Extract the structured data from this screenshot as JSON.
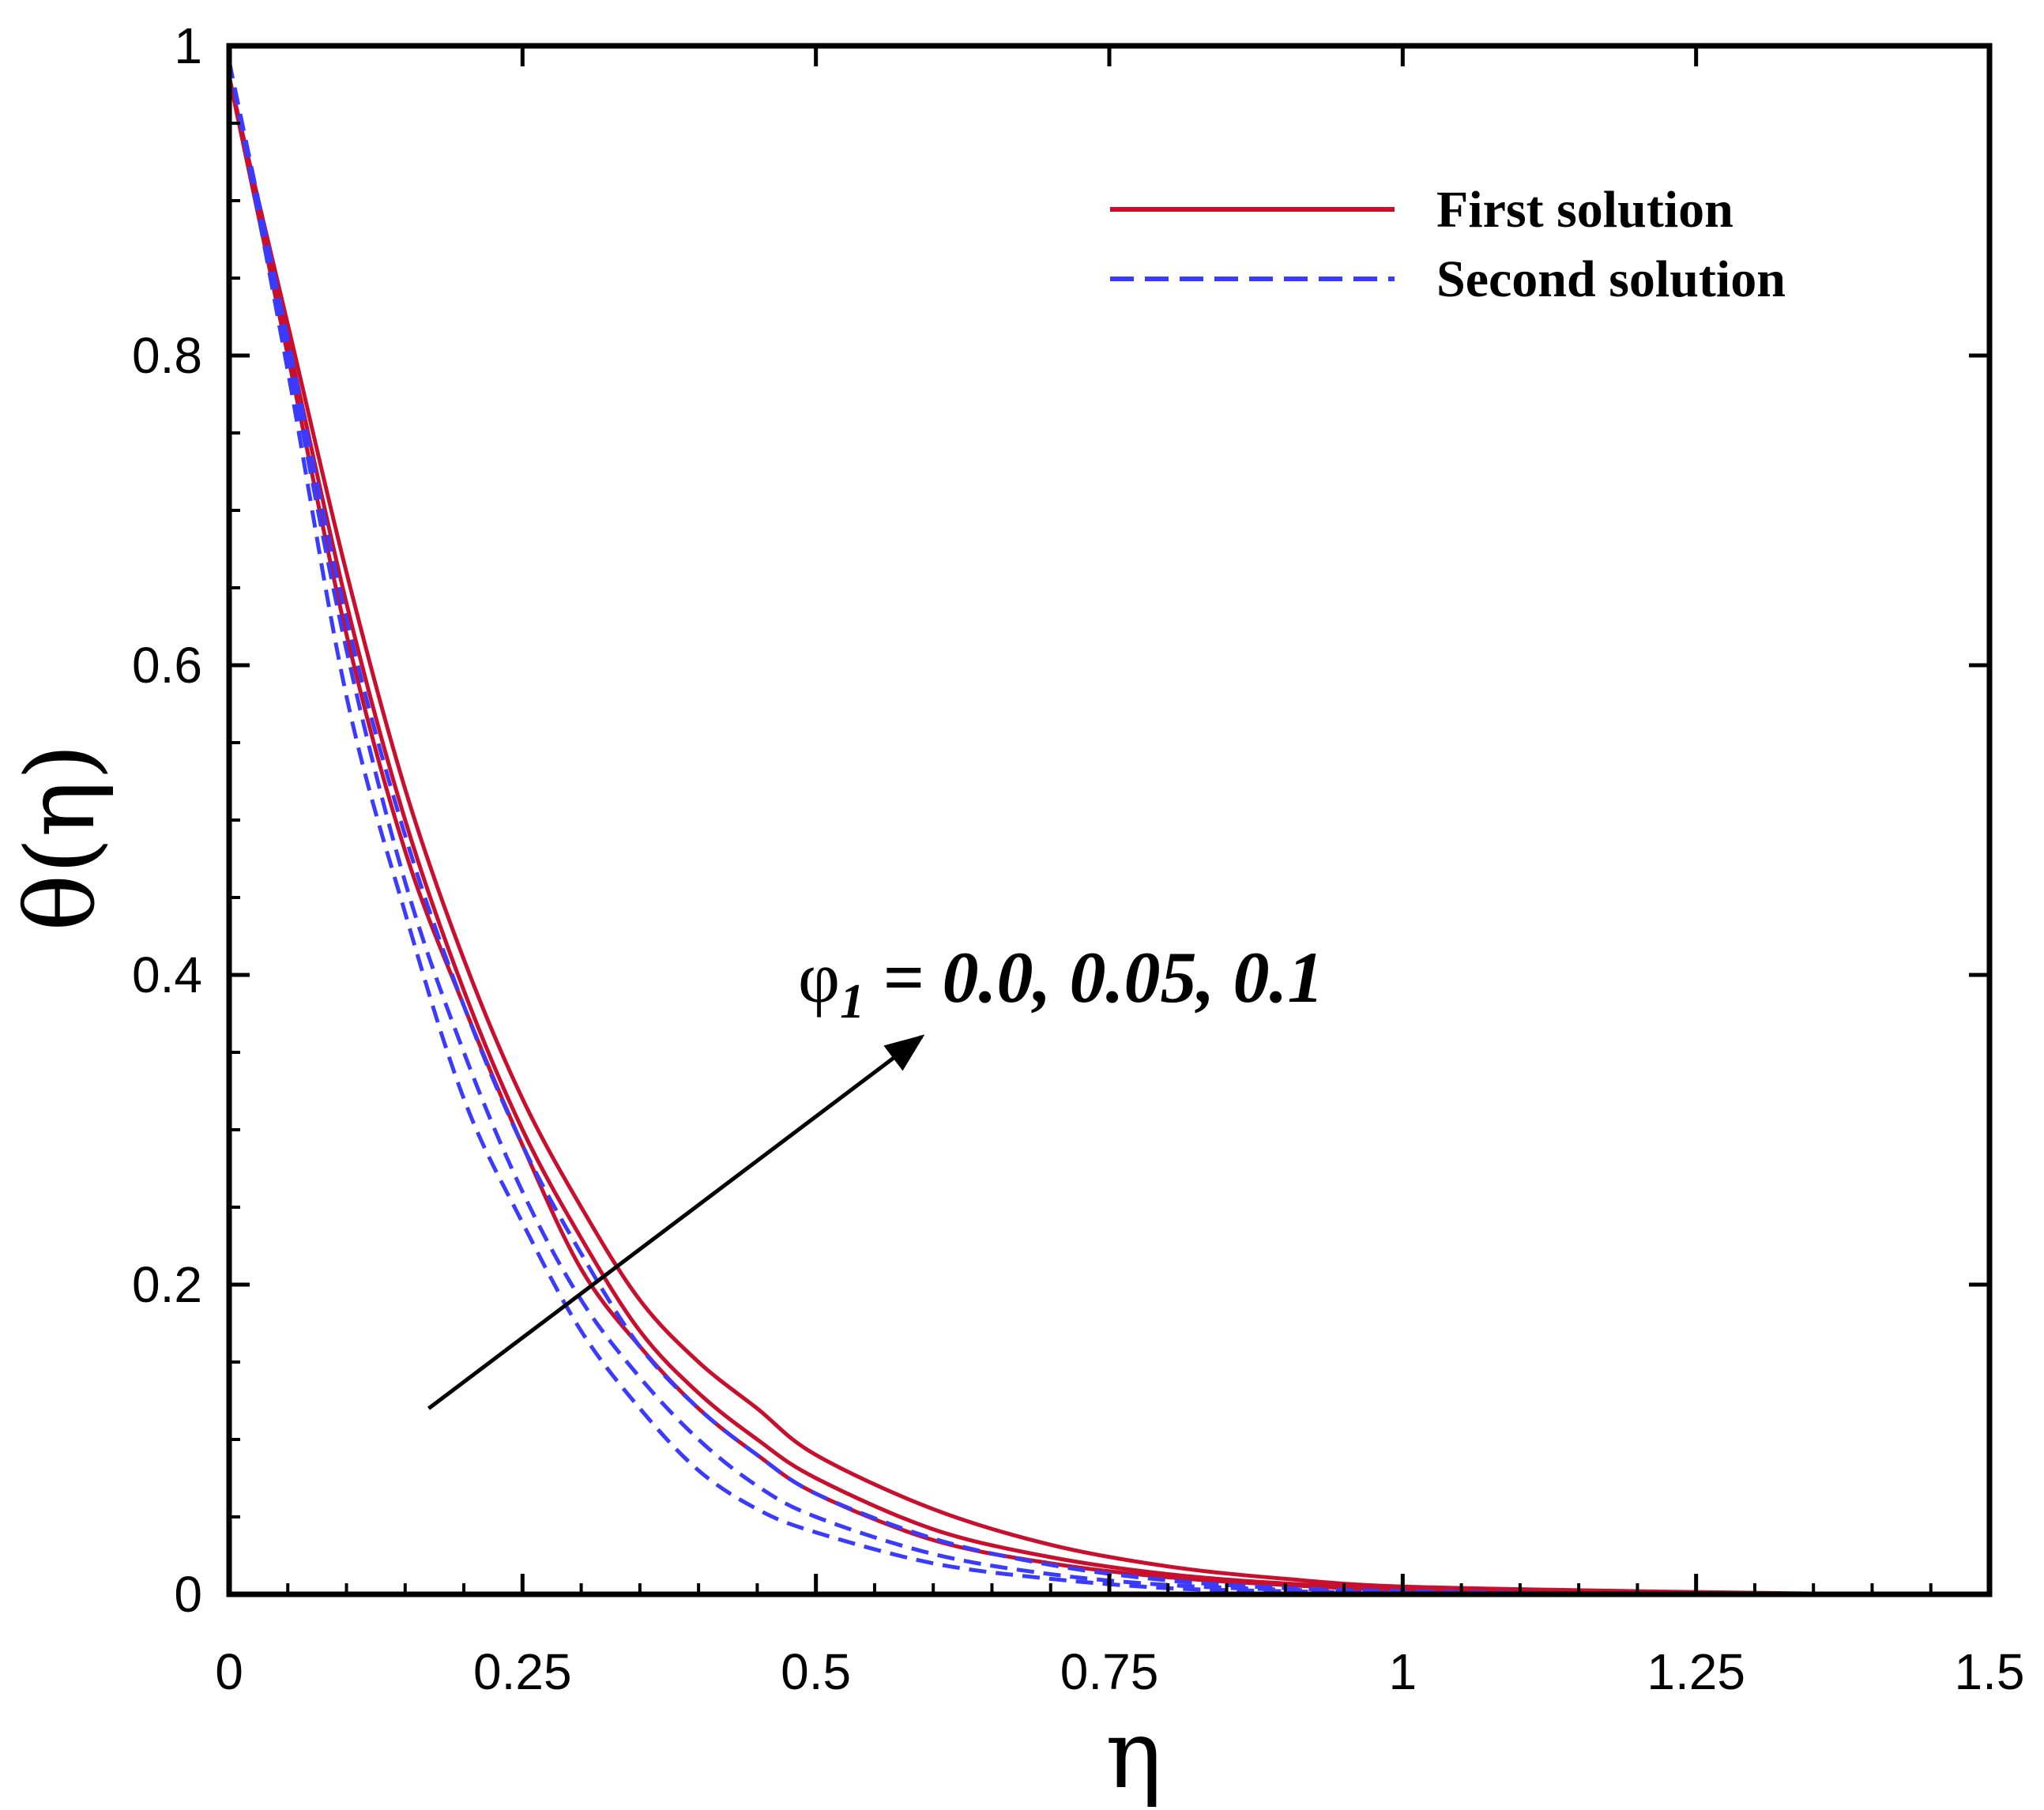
{
  "chart_data": {
    "type": "line",
    "title": "",
    "xlabel": "η",
    "ylabel": "θ(η)",
    "xlim": [
      0,
      1.5
    ],
    "ylim": [
      0,
      1
    ],
    "x_ticks": [
      {
        "value": 0,
        "label": "0"
      },
      {
        "value": 0.25,
        "label": "0.25"
      },
      {
        "value": 0.5,
        "label": "0.5"
      },
      {
        "value": 0.75,
        "label": "0.75"
      },
      {
        "value": 1,
        "label": "1"
      },
      {
        "value": 1.25,
        "label": "1.25"
      },
      {
        "value": 1.5,
        "label": "1.5"
      }
    ],
    "y_ticks": [
      {
        "value": 0,
        "label": "0"
      },
      {
        "value": 0.2,
        "label": "0.2"
      },
      {
        "value": 0.4,
        "label": "0.4"
      },
      {
        "value": 0.6,
        "label": "0.6"
      },
      {
        "value": 0.8,
        "label": "0.8"
      },
      {
        "value": 1,
        "label": "1"
      }
    ],
    "x_minor_step": 0.05,
    "y_minor_step": 0.05,
    "legend": {
      "position": "top-right",
      "entries": [
        {
          "label": "First solution",
          "color": "#c8102e",
          "style": "solid"
        },
        {
          "label": "Second solution",
          "color": "#3b3bff",
          "style": "dashed"
        }
      ]
    },
    "annotation": {
      "symbol": "φ",
      "subscript": "1",
      "text": " = 0.0, 0.05, 0.1",
      "arrow_from": [
        0.17,
        0.12
      ],
      "arrow_to": [
        0.59,
        0.36
      ]
    },
    "series": [
      {
        "name": "First solution, φ1 = 0.0",
        "group": "First solution",
        "color": "#c8102e",
        "dash": "solid",
        "x": [
          0,
          0.05,
          0.1,
          0.15,
          0.2,
          0.25,
          0.3,
          0.35,
          0.4,
          0.45,
          0.5,
          0.6,
          0.7,
          0.8,
          0.9,
          1.0,
          1.2,
          1.4
        ],
        "y": [
          0.98,
          0.8,
          0.62,
          0.48,
          0.38,
          0.29,
          0.21,
          0.16,
          0.12,
          0.09,
          0.065,
          0.035,
          0.02,
          0.011,
          0.006,
          0.003,
          0.001,
          0.0
        ]
      },
      {
        "name": "First solution, φ1 = 0.05",
        "group": "First solution",
        "color": "#c8102e",
        "dash": "solid",
        "x": [
          0,
          0.05,
          0.1,
          0.15,
          0.2,
          0.25,
          0.3,
          0.35,
          0.4,
          0.45,
          0.5,
          0.6,
          0.7,
          0.8,
          0.9,
          1.0,
          1.2,
          1.4
        ],
        "y": [
          0.98,
          0.81,
          0.64,
          0.5,
          0.39,
          0.3,
          0.23,
          0.17,
          0.13,
          0.1,
          0.075,
          0.042,
          0.024,
          0.013,
          0.007,
          0.004,
          0.001,
          0.0
        ]
      },
      {
        "name": "First solution, φ1 = 0.1",
        "group": "First solution",
        "color": "#c8102e",
        "dash": "solid",
        "x": [
          0,
          0.05,
          0.1,
          0.15,
          0.2,
          0.25,
          0.3,
          0.35,
          0.4,
          0.45,
          0.5,
          0.6,
          0.7,
          0.8,
          0.9,
          1.0,
          1.2,
          1.4
        ],
        "y": [
          0.98,
          0.82,
          0.66,
          0.52,
          0.41,
          0.32,
          0.25,
          0.19,
          0.15,
          0.12,
          0.09,
          0.055,
          0.032,
          0.018,
          0.01,
          0.005,
          0.002,
          0.0
        ]
      },
      {
        "name": "Second solution, φ1 = 0.0",
        "group": "Second solution",
        "color": "#3b3bff",
        "dash": "dashed",
        "x": [
          0,
          0.05,
          0.1,
          0.15,
          0.2,
          0.25,
          0.3,
          0.35,
          0.4,
          0.45,
          0.5,
          0.6,
          0.7,
          0.8,
          0.9,
          1.0,
          1.2,
          1.5
        ],
        "y": [
          0.99,
          0.79,
          0.58,
          0.44,
          0.32,
          0.24,
          0.17,
          0.12,
          0.08,
          0.055,
          0.04,
          0.02,
          0.01,
          0.004,
          0.002,
          0.001,
          0.0,
          0.0
        ]
      },
      {
        "name": "Second solution, φ1 = 0.05",
        "group": "Second solution",
        "color": "#3b3bff",
        "dash": "dashed",
        "x": [
          0,
          0.05,
          0.1,
          0.15,
          0.2,
          0.25,
          0.3,
          0.35,
          0.4,
          0.45,
          0.5,
          0.6,
          0.7,
          0.8,
          0.9,
          1.0,
          1.2,
          1.5
        ],
        "y": [
          0.99,
          0.8,
          0.61,
          0.46,
          0.35,
          0.26,
          0.19,
          0.14,
          0.1,
          0.07,
          0.05,
          0.026,
          0.013,
          0.006,
          0.003,
          0.001,
          0.0,
          0.0
        ]
      },
      {
        "name": "Second solution, φ1 = 0.1",
        "group": "Second solution",
        "color": "#3b3bff",
        "dash": "dashed",
        "x": [
          0,
          0.05,
          0.1,
          0.15,
          0.2,
          0.25,
          0.3,
          0.35,
          0.4,
          0.45,
          0.5,
          0.6,
          0.7,
          0.8,
          0.9,
          1.0,
          1.2,
          1.5
        ],
        "y": [
          0.99,
          0.81,
          0.63,
          0.49,
          0.38,
          0.29,
          0.22,
          0.16,
          0.12,
          0.09,
          0.065,
          0.036,
          0.019,
          0.009,
          0.004,
          0.002,
          0.0,
          0.0
        ]
      }
    ]
  }
}
